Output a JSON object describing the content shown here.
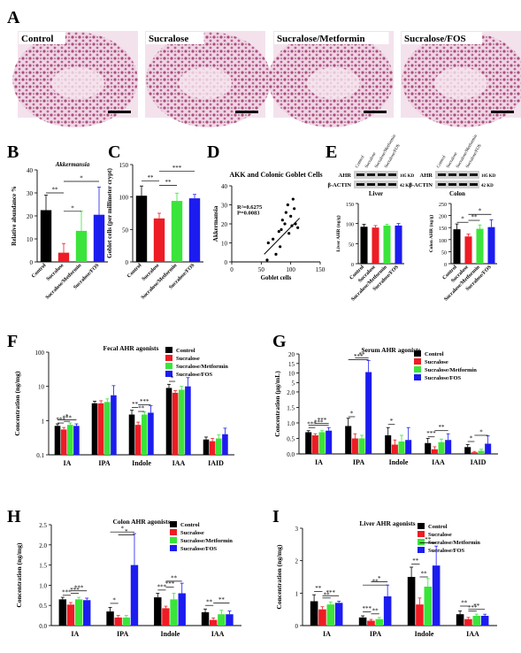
{
  "colors": {
    "control": "#000000",
    "sucralose": "#ee1c24",
    "metformin": "#3be43b",
    "fos": "#1c1cf0",
    "tissue": "#a8457c",
    "tissue_bg": "#f0d6e4"
  },
  "legend_labels": [
    "Control",
    "Sucralose",
    "Sucralose/Metformin",
    "Sucralose/FOS"
  ],
  "panel_a": {
    "letter": "A",
    "images": [
      {
        "label": "Control"
      },
      {
        "label": "Sucralose"
      },
      {
        "label": "Sucralose/Metformin"
      },
      {
        "label": "Sucralose/FOS"
      }
    ]
  },
  "panel_e": {
    "letter": "E",
    "blots": [
      {
        "lane_labels": [
          "Control",
          "Sucralose",
          "Sucralose/Metformin",
          "Sucralose/FOS"
        ],
        "row1": "AHR",
        "row2": "β-ACTIN",
        "kd1": "105 KD",
        "kd2": "42 KD",
        "tissue": "Liver"
      },
      {
        "lane_labels": [
          "Control",
          "Sucralose",
          "Sucralose/Metformin",
          "Sucralose/FOS"
        ],
        "row1": "AHR",
        "row2": "β-ACTIN",
        "kd1": "105 KD",
        "kd2": "42 KD",
        "tissue": "Colon"
      }
    ]
  },
  "chart_data": [
    {
      "panel": "B",
      "type": "bar",
      "title": "Akkermansia",
      "ylabel": "Relative abundance %",
      "ylim": [
        0,
        40
      ],
      "yticks": [
        0,
        10,
        20,
        30,
        40
      ],
      "categories": [
        "Control",
        "Sucralose",
        "Sucralose/Metformin",
        "Sucralose/FOS"
      ],
      "values": [
        22.5,
        4.0,
        13.5,
        20.5
      ],
      "errors": [
        6.5,
        4.0,
        8.5,
        12.0
      ],
      "sig": [
        "**",
        "*",
        "*"
      ]
    },
    {
      "panel": "C",
      "type": "bar",
      "title": "",
      "ylabel": "Goblet cells (per millimeter crypt)",
      "ylim": [
        0,
        150
      ],
      "yticks": [
        0,
        50,
        100,
        150
      ],
      "categories": [
        "Control",
        "Sucralose",
        "Sucralose/Metformin",
        "Sucralose/FOS"
      ],
      "values": [
        102,
        67,
        94,
        98
      ],
      "errors": [
        15,
        8,
        12,
        6
      ],
      "sig": [
        "**",
        "***",
        "**"
      ]
    },
    {
      "panel": "D",
      "type": "scatter",
      "title": "AKK and Colonic Goblet Cells",
      "xlabel": "Goblet cells",
      "ylabel": "Akkermansia",
      "xlim": [
        0,
        150
      ],
      "ylim": [
        0,
        40
      ],
      "xticks": [
        0,
        50,
        100,
        150
      ],
      "yticks": [
        0,
        10,
        20,
        30,
        40
      ],
      "annotation": [
        "R²=0.6275",
        "P=0.0083"
      ],
      "points": [
        [
          60,
          1
        ],
        [
          62,
          10
        ],
        [
          70,
          12
        ],
        [
          75,
          4
        ],
        [
          80,
          16
        ],
        [
          82,
          8
        ],
        [
          84,
          17
        ],
        [
          86,
          22
        ],
        [
          90,
          20
        ],
        [
          92,
          26
        ],
        [
          95,
          30
        ],
        [
          97,
          15
        ],
        [
          100,
          24
        ],
        [
          102,
          19
        ],
        [
          104,
          33
        ],
        [
          106,
          28
        ],
        [
          108,
          20
        ],
        [
          112,
          18
        ]
      ],
      "fit": [
        [
          55,
          4
        ],
        [
          115,
          23
        ]
      ]
    },
    {
      "panel": "E1",
      "type": "bar",
      "title": "",
      "ylabel": "Liver AHR (ng/g)",
      "ylim": [
        0,
        150
      ],
      "yticks": [
        0,
        50,
        100,
        150
      ],
      "categories": [
        "Control",
        "Sucralose",
        "Sucralose/Metformin",
        "Sucralose/FOS"
      ],
      "values": [
        92,
        90,
        95,
        95
      ],
      "errors": [
        6,
        5,
        3,
        5
      ],
      "sig": []
    },
    {
      "panel": "E2",
      "type": "bar",
      "title": "",
      "ylabel": "Colon AHR (ng/g)",
      "ylim": [
        0,
        250
      ],
      "yticks": [
        0,
        50,
        100,
        150,
        200,
        250
      ],
      "categories": [
        "Control",
        "Sucralose",
        "Sucralose/Metformin",
        "Sucralose/FOS"
      ],
      "values": [
        143,
        113,
        145,
        152
      ],
      "errors": [
        22,
        10,
        16,
        30
      ],
      "sig": [
        "*",
        "**",
        "*"
      ]
    },
    {
      "panel": "F",
      "type": "bar",
      "title": "Fecal AHR agonists",
      "ylabel": "Concentration (ng/mg)",
      "yscale": "log",
      "ylim": [
        0.1,
        100
      ],
      "ytick_labels": [
        "0.1",
        "1",
        "10",
        "100"
      ],
      "categories": [
        "IA",
        "IPA",
        "Indole",
        "IAA",
        "IAID"
      ],
      "series": [
        {
          "name": "Control",
          "values": [
            0.7,
            3.2,
            1.5,
            9.0,
            0.28
          ],
          "errors": [
            0.1,
            0.5,
            0.5,
            2.5,
            0.05
          ]
        },
        {
          "name": "Sucralose",
          "values": [
            0.55,
            3.2,
            0.75,
            6.5,
            0.25
          ],
          "errors": [
            0.08,
            0.6,
            0.15,
            1.0,
            0.05
          ]
        },
        {
          "name": "Sucralose/Metformin",
          "values": [
            0.75,
            3.5,
            1.5,
            8.0,
            0.3
          ],
          "errors": [
            0.1,
            0.8,
            0.3,
            2.0,
            0.08
          ]
        },
        {
          "name": "Sucralose/FOS",
          "values": [
            0.7,
            5.5,
            1.7,
            10.0,
            0.4
          ],
          "errors": [
            0.1,
            5.0,
            1.0,
            8.0,
            0.2
          ]
        }
      ],
      "sig_labels": [
        "***",
        "*",
        "***",
        "**",
        "***",
        "**",
        "*"
      ]
    },
    {
      "panel": "G",
      "type": "bar",
      "title": "Serum AHR agonists",
      "ylabel": "Concentration (μg/mL)",
      "ylim": [
        0,
        20
      ],
      "ybreak": [
        2.0,
        6.0
      ],
      "ytick_labels": [
        "0.0",
        "0.5",
        "1.0",
        "1.5",
        "2.0",
        "5",
        "10",
        "15",
        "20"
      ],
      "categories": [
        "IA",
        "IPA",
        "Indole",
        "IAA",
        "IAID"
      ],
      "series": [
        {
          "name": "Control",
          "values": [
            0.7,
            0.9,
            0.6,
            0.35,
            0.22
          ],
          "errors": [
            0.05,
            0.25,
            0.25,
            0.15,
            0.08
          ]
        },
        {
          "name": "Sucralose",
          "values": [
            0.6,
            0.5,
            0.3,
            0.15,
            0.05
          ],
          "errors": [
            0.05,
            0.15,
            0.15,
            0.08,
            0.03
          ]
        },
        {
          "name": "Sucralose/Metformin",
          "values": [
            0.7,
            0.5,
            0.4,
            0.38,
            0.1
          ],
          "errors": [
            0.05,
            0.1,
            0.2,
            0.1,
            0.05
          ]
        },
        {
          "name": "Sucralose/FOS",
          "values": [
            0.75,
            10.5,
            0.45,
            0.45,
            0.33
          ],
          "errors": [
            0.1,
            6.0,
            0.4,
            0.2,
            0.25
          ]
        }
      ],
      "sig_labels": [
        "***",
        "***",
        "***",
        "*",
        "**",
        "***",
        "*",
        "***",
        "**",
        "*",
        "*"
      ]
    },
    {
      "panel": "H",
      "type": "bar",
      "title": "Colon AHR agonists",
      "ylabel": "Concentration (ng/mg)",
      "ylim": [
        0,
        2.5
      ],
      "ytick_labels": [
        "0.0",
        "0.5",
        "1.0",
        "1.5",
        "2.0",
        "2.5"
      ],
      "categories": [
        "IA",
        "IPA",
        "Indole",
        "IAA"
      ],
      "series": [
        {
          "name": "Control",
          "values": [
            0.65,
            0.35,
            0.7,
            0.33
          ],
          "errors": [
            0.05,
            0.1,
            0.1,
            0.08
          ]
        },
        {
          "name": "Sucralose",
          "values": [
            0.52,
            0.2,
            0.43,
            0.14
          ],
          "errors": [
            0.05,
            0.05,
            0.05,
            0.05
          ]
        },
        {
          "name": "Sucralose/Metformin",
          "values": [
            0.65,
            0.2,
            0.65,
            0.28
          ],
          "errors": [
            0.05,
            0.05,
            0.15,
            0.1
          ]
        },
        {
          "name": "Sucralose/FOS",
          "values": [
            0.63,
            1.5,
            0.8,
            0.28
          ],
          "errors": [
            0.05,
            0.78,
            0.25,
            0.08
          ]
        }
      ],
      "sig_labels": [
        "***",
        "***",
        "***",
        "*",
        "*",
        "*",
        "***",
        "***",
        "**",
        "**",
        "**"
      ]
    },
    {
      "panel": "I",
      "type": "bar",
      "title": "Liver AHR agonists",
      "ylabel": "Concentration (ng/mg)",
      "ylim": [
        0,
        3
      ],
      "ytick_labels": [
        "0",
        "1",
        "2",
        "3"
      ],
      "categories": [
        "IA",
        "IPA",
        "Indole",
        "IAA"
      ],
      "series": [
        {
          "name": "Control",
          "values": [
            0.75,
            0.25,
            1.5,
            0.35
          ],
          "errors": [
            0.2,
            0.05,
            0.3,
            0.1
          ]
        },
        {
          "name": "Sucralose",
          "values": [
            0.5,
            0.15,
            0.65,
            0.2
          ],
          "errors": [
            0.08,
            0.04,
            0.2,
            0.05
          ]
        },
        {
          "name": "Sucralose/Metformin",
          "values": [
            0.65,
            0.2,
            1.2,
            0.3
          ],
          "errors": [
            0.08,
            0.05,
            0.25,
            0.05
          ]
        },
        {
          "name": "Sucralose/FOS",
          "values": [
            0.7,
            0.9,
            1.85,
            0.3
          ],
          "errors": [
            0.05,
            0.35,
            0.6,
            0.05
          ]
        }
      ],
      "sig_labels": [
        "**",
        "**",
        "***",
        "***",
        "**",
        "*",
        "**",
        "**",
        "**",
        "**",
        "**",
        "***",
        "**"
      ]
    }
  ]
}
